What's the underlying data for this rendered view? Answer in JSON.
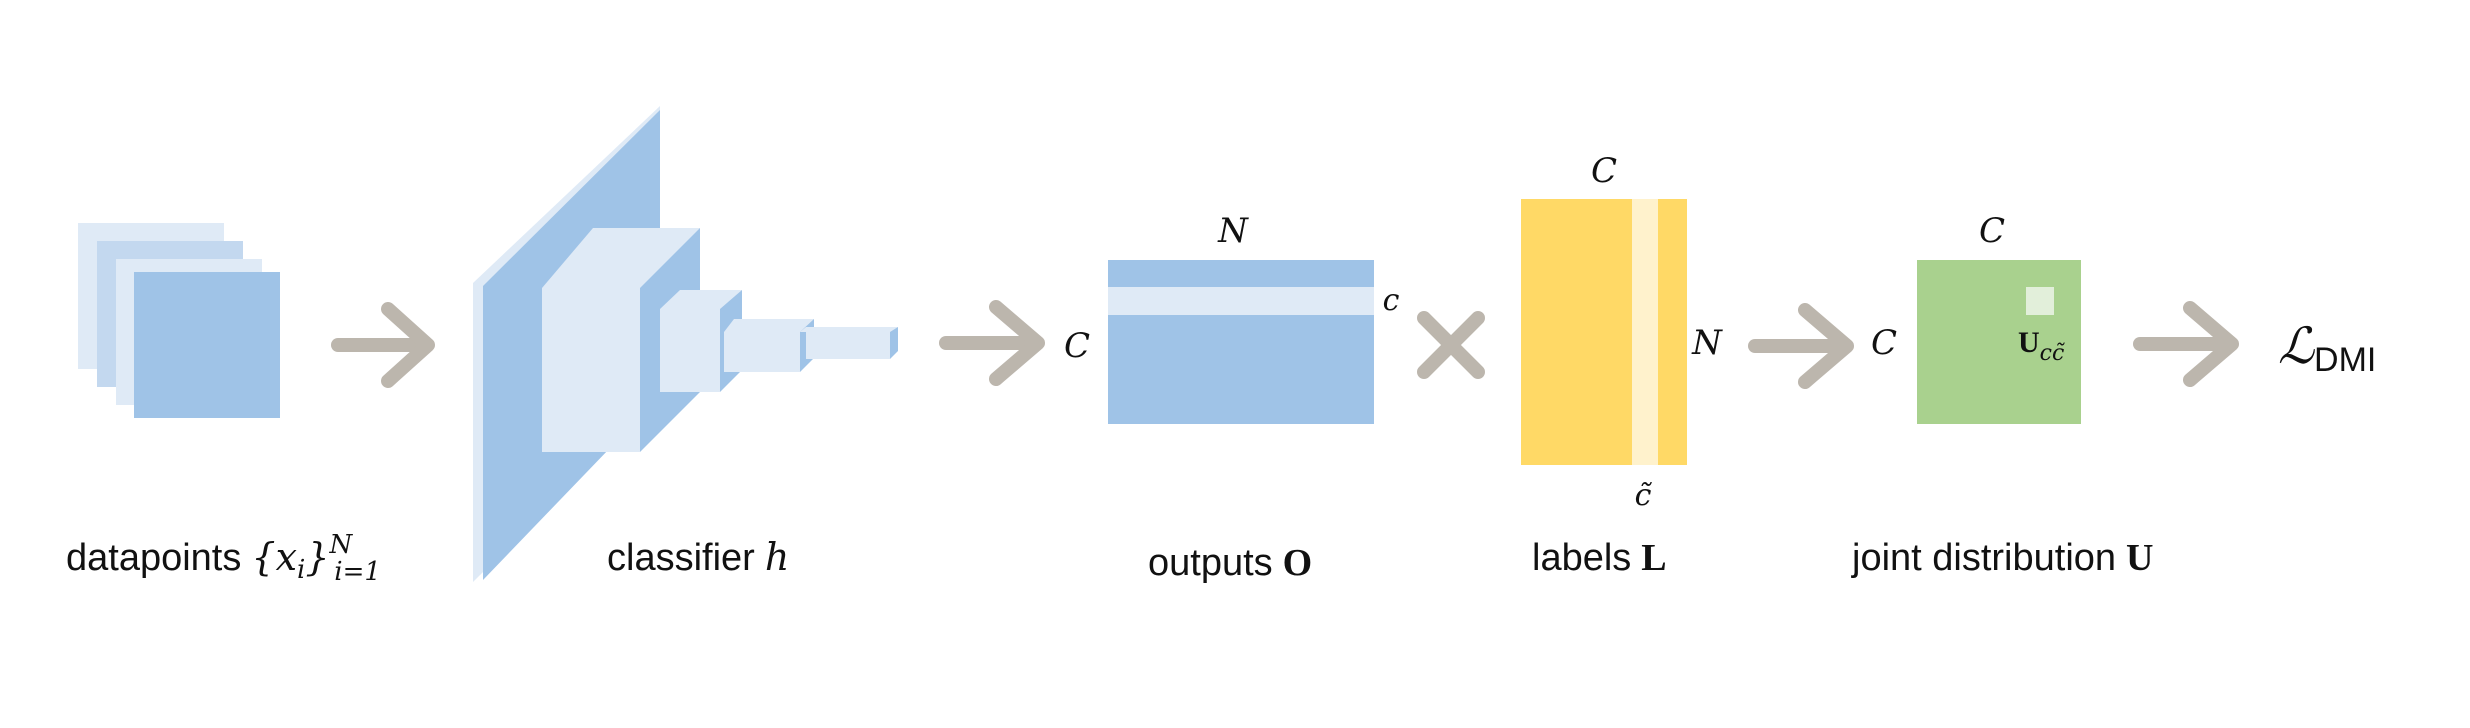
{
  "colors": {
    "blue_dark": "#9fc3e7",
    "blue_light": "#dfeaf6",
    "blue_mid": "#c3d8ef",
    "yellow": "#ffd966",
    "yellow_light": "#fff2cc",
    "green": "#a9d18e",
    "green_light": "#e2efda",
    "arrow_gray": "#bcb6ad",
    "text": "#111111"
  },
  "captions": {
    "datapoints": {
      "text": "datapoints",
      "set_open": "{",
      "var": "x",
      "var_sub": "i",
      "set_close": "}",
      "sup": "N",
      "sub": "i=1"
    },
    "classifier": {
      "text": "classifier",
      "var": "h"
    },
    "outputs": {
      "text": "outputs",
      "bold": "O"
    },
    "labels": {
      "text": "labels",
      "bold": "L"
    },
    "joint": {
      "text": "joint distribution",
      "bold": "U"
    }
  },
  "outputs_matrix": {
    "top_dim": "N",
    "left_dim": "C",
    "row_marker": "c"
  },
  "labels_matrix": {
    "top_dim": "C",
    "right_dim": "N",
    "col_marker": "c̃"
  },
  "joint_matrix": {
    "top_dim": "C",
    "left_dim": "C",
    "cell_bold": "U",
    "cell_sub": "cc̃"
  },
  "operator": {
    "icon": "multiply-icon"
  },
  "loss": {
    "script_l": "ℒ",
    "sub": "DMI"
  }
}
